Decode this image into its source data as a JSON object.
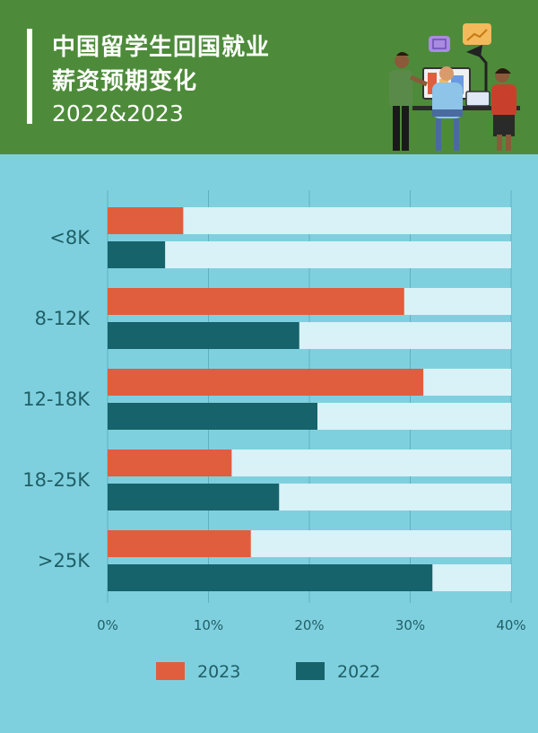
{
  "header": {
    "title_line1": "中国留学生回国就业",
    "title_line2": "薪资预期变化",
    "subtitle": "2022&2023",
    "background": "#4d8b3a"
  },
  "chart_data": {
    "type": "bar",
    "orientation": "horizontal",
    "categories": [
      "<8K",
      "8-12K",
      "12-18K",
      "18-25K",
      ">25K"
    ],
    "series": [
      {
        "name": "2023",
        "color": "#e05e3d",
        "values": [
          7.5,
          29.4,
          31.3,
          12.3,
          14.2
        ]
      },
      {
        "name": "2022",
        "color": "#17636b",
        "values": [
          5.7,
          19.0,
          20.8,
          17.0,
          32.2
        ]
      }
    ],
    "xlim": [
      0,
      40
    ],
    "xticks": [
      "0%",
      "10%",
      "20%",
      "30%",
      "40%"
    ],
    "track_color": "#d8f2f7",
    "grid": true,
    "legend_position": "bottom"
  }
}
